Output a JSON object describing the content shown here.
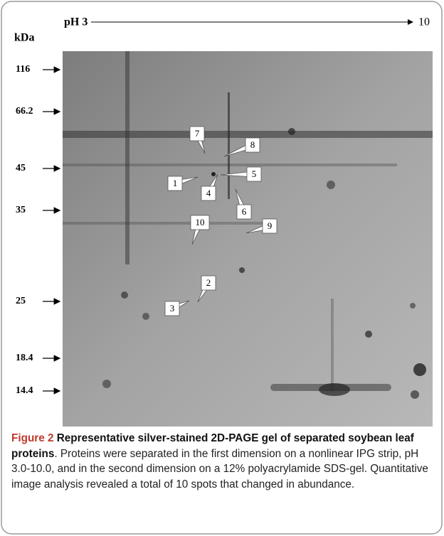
{
  "header": {
    "ph_start": "pH 3",
    "ph_end": "10",
    "axis_label": "kDa"
  },
  "markers": [
    "116",
    "66.2",
    "45",
    "35",
    "25",
    "18.4",
    "14.4"
  ],
  "spots": [
    "1",
    "2",
    "3",
    "4",
    "5",
    "6",
    "7",
    "8",
    "9",
    "10"
  ],
  "caption": {
    "label": "Figure 2",
    "title": "Representative silver-stained 2D-PAGE gel of separated soybean leaf proteins",
    "text": ". Proteins were separated in the first dimension on a nonlinear IPG strip, pH 3.0-10.0, and in the second dimension on a 12% polyacrylamide SDS-gel. Quantitative image analysis revealed a total of 10 spots that changed in abundance."
  }
}
